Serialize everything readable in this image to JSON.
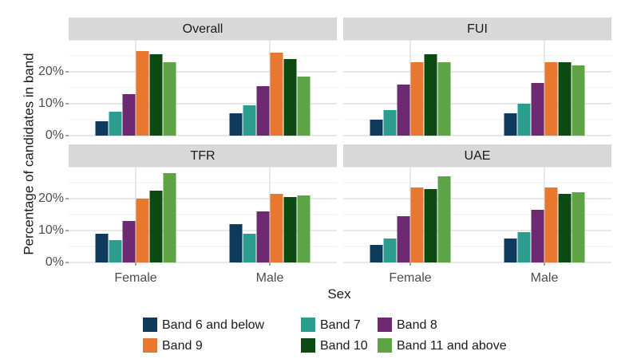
{
  "chart_data": {
    "type": "bar",
    "xlabel": "Sex",
    "ylabel": "Percentage of candidates in band",
    "ylim": [
      0,
      30
    ],
    "y_ticks": [
      0,
      10,
      20
    ],
    "y_tick_labels": [
      "0%",
      "10%",
      "20%"
    ],
    "grid": true,
    "legend_position": "bottom",
    "categories": [
      "Female",
      "Male"
    ],
    "series_names": [
      "Band 6 and below",
      "Band 7",
      "Band 8",
      "Band 9",
      "Band 10",
      "Band 11 and above"
    ],
    "colors": [
      "#0e3a5c",
      "#2a9d8f",
      "#6d2a72",
      "#e8782f",
      "#0d4a12",
      "#5ea447"
    ],
    "panels": [
      {
        "title": "Overall",
        "values": {
          "Female": [
            4.5,
            7.5,
            13.0,
            26.5,
            25.5,
            23.0
          ],
          "Male": [
            7.0,
            9.5,
            15.5,
            26.0,
            24.0,
            18.5
          ]
        }
      },
      {
        "title": "FUI",
        "values": {
          "Female": [
            5.0,
            8.0,
            16.0,
            23.0,
            25.5,
            23.0
          ],
          "Male": [
            7.0,
            10.0,
            16.5,
            23.0,
            23.0,
            22.0
          ]
        }
      },
      {
        "title": "TFR",
        "values": {
          "Female": [
            9.0,
            7.0,
            13.0,
            20.0,
            22.5,
            28.0
          ],
          "Male": [
            12.0,
            9.0,
            16.0,
            21.5,
            20.5,
            21.0
          ]
        }
      },
      {
        "title": "UAE",
        "values": {
          "Female": [
            5.5,
            7.5,
            14.5,
            23.5,
            23.0,
            27.0
          ],
          "Male": [
            7.5,
            9.5,
            16.5,
            23.5,
            21.5,
            22.0
          ]
        }
      }
    ]
  }
}
